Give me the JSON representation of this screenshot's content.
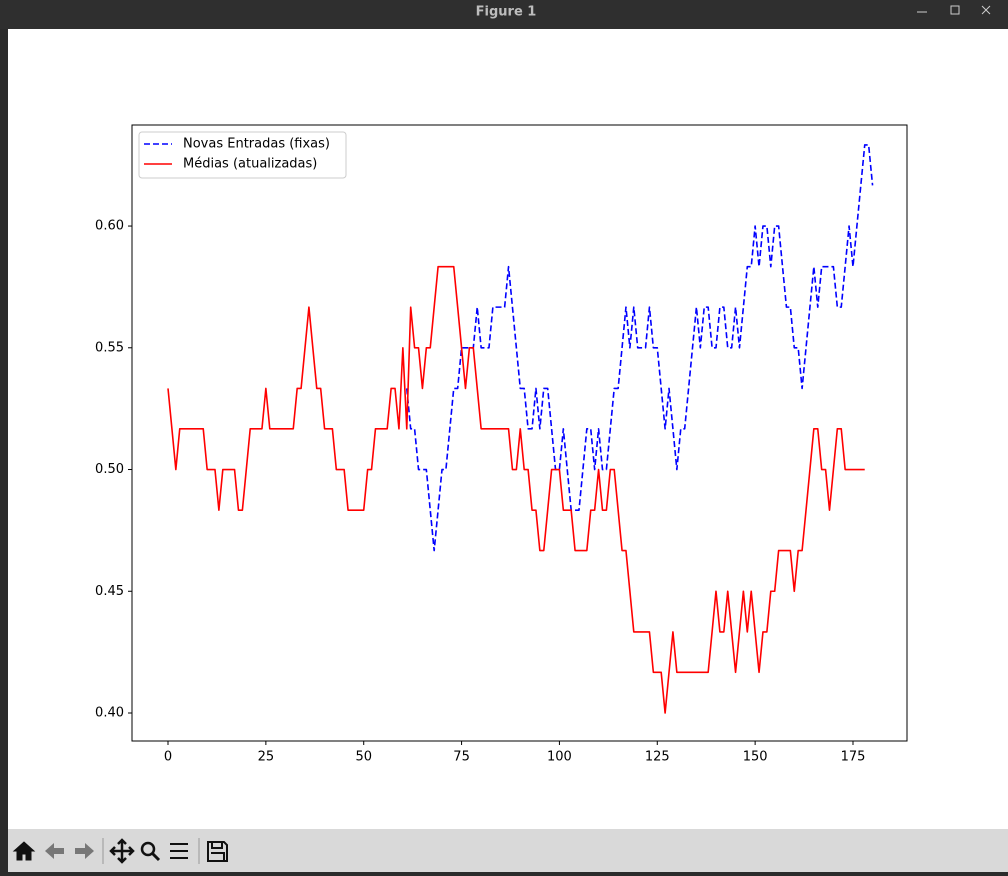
{
  "window": {
    "title": "Figure 1"
  },
  "chart_data": {
    "type": "line",
    "legend": "upper left",
    "grid": false,
    "x": [
      0,
      1,
      2,
      3,
      4,
      5,
      6,
      7,
      8,
      9,
      10,
      11,
      12,
      13,
      14,
      15,
      16,
      17,
      18,
      19,
      20,
      21,
      22,
      23,
      24,
      25,
      26,
      27,
      28,
      29,
      30,
      31,
      32,
      33,
      34,
      35,
      36,
      37,
      38,
      39,
      40,
      41,
      42,
      43,
      44,
      45,
      46,
      47,
      48,
      49,
      50,
      51,
      52,
      53,
      54,
      55,
      56,
      57,
      58,
      59,
      60,
      61,
      62,
      63,
      64,
      65,
      66,
      67,
      68,
      69,
      70,
      71,
      72,
      73,
      74,
      75,
      76,
      77,
      78,
      79,
      80,
      81,
      82,
      83,
      84,
      85,
      86,
      87,
      88,
      89,
      90,
      91,
      92,
      93,
      94,
      95,
      96,
      97,
      98,
      99,
      100,
      101,
      102,
      103,
      104,
      105,
      106,
      107,
      108,
      109,
      110,
      111,
      112,
      113,
      114,
      115,
      116,
      117,
      118,
      119,
      120,
      121,
      122,
      123,
      124,
      125,
      126,
      127,
      128,
      129,
      130,
      131,
      132,
      133,
      134,
      135,
      136,
      137,
      138,
      139,
      140,
      141,
      142,
      143,
      144,
      145,
      146,
      147,
      148,
      149,
      150,
      151,
      152,
      153,
      154,
      155,
      156,
      157,
      158,
      159,
      160,
      161,
      162,
      163,
      164,
      165,
      166,
      167,
      168,
      169,
      170,
      171,
      172,
      173,
      174,
      175,
      176,
      177,
      178,
      179,
      180
    ],
    "series": [
      {
        "name": "Novas Entradas (fixas)",
        "color": "#0000ff",
        "linestyle": "dashed",
        "values": [
          null,
          null,
          null,
          null,
          null,
          null,
          null,
          null,
          null,
          null,
          null,
          null,
          null,
          null,
          null,
          null,
          null,
          null,
          null,
          null,
          null,
          null,
          null,
          null,
          null,
          null,
          null,
          null,
          null,
          null,
          null,
          null,
          null,
          null,
          null,
          null,
          null,
          null,
          null,
          null,
          null,
          null,
          null,
          null,
          null,
          null,
          null,
          null,
          null,
          null,
          null,
          null,
          null,
          null,
          null,
          null,
          null,
          null,
          null,
          null,
          null,
          0.5333,
          0.5167,
          0.5167,
          0.5,
          0.5,
          0.5,
          0.4833,
          0.4667,
          0.4833,
          0.5,
          0.5,
          0.5167,
          0.5333,
          0.5333,
          0.55,
          0.55,
          0.55,
          0.55,
          0.5667,
          0.55,
          0.55,
          0.55,
          0.5667,
          0.5667,
          0.5667,
          0.5667,
          0.5833,
          0.5667,
          0.55,
          0.5333,
          0.5333,
          0.5167,
          0.5167,
          0.5333,
          0.5167,
          0.5333,
          0.5333,
          0.5167,
          0.5,
          0.5,
          0.5167,
          0.5,
          0.4833,
          0.4833,
          0.4833,
          0.5,
          0.5167,
          0.5167,
          0.5,
          0.5167,
          0.5,
          0.5,
          0.5167,
          0.5333,
          0.5333,
          0.55,
          0.5667,
          0.55,
          0.5667,
          0.55,
          0.55,
          0.55,
          0.5667,
          0.55,
          0.55,
          0.5333,
          0.5167,
          0.5333,
          0.5167,
          0.5,
          0.5167,
          0.5167,
          0.5333,
          0.55,
          0.5667,
          0.55,
          0.5667,
          0.5667,
          0.55,
          0.55,
          0.5667,
          0.5667,
          0.55,
          0.55,
          0.5667,
          0.55,
          0.5667,
          0.5833,
          0.5833,
          0.6,
          0.5833,
          0.6,
          0.6,
          0.5833,
          0.6,
          0.6,
          0.5833,
          0.5667,
          0.5667,
          0.55,
          0.55,
          0.5333,
          0.55,
          0.5667,
          0.5833,
          0.5667,
          0.5833,
          0.5833,
          0.5833,
          0.5833,
          0.5667,
          0.5667,
          0.5833,
          0.6,
          0.5833,
          0.6,
          0.6167,
          0.6333,
          0.6333,
          0.6167
        ]
      },
      {
        "name": "Médias (atualizadas)",
        "color": "#ff0000",
        "linestyle": "solid",
        "values": [
          0.5333,
          0.5167,
          0.5,
          0.5167,
          0.5167,
          0.5167,
          0.5167,
          0.5167,
          0.5167,
          0.5167,
          0.5,
          0.5,
          0.5,
          0.4833,
          0.5,
          0.5,
          0.5,
          0.5,
          0.4833,
          0.4833,
          0.5,
          0.5167,
          0.5167,
          0.5167,
          0.5167,
          0.5333,
          0.5167,
          0.5167,
          0.5167,
          0.5167,
          0.5167,
          0.5167,
          0.5167,
          0.5333,
          0.5333,
          0.55,
          0.5667,
          0.55,
          0.5333,
          0.5333,
          0.5167,
          0.5167,
          0.5167,
          0.5,
          0.5,
          0.5,
          0.4833,
          0.4833,
          0.4833,
          0.4833,
          0.4833,
          0.5,
          0.5,
          0.5167,
          0.5167,
          0.5167,
          0.5167,
          0.5333,
          0.5333,
          0.5167,
          0.55,
          0.5167,
          0.5667,
          0.55,
          0.55,
          0.5333,
          0.55,
          0.55,
          0.5667,
          0.5833,
          0.5833,
          0.5833,
          0.5833,
          0.5833,
          0.5667,
          0.55,
          0.5333,
          0.55,
          0.55,
          0.5333,
          0.5167,
          0.5167,
          0.5167,
          0.5167,
          0.5167,
          0.5167,
          0.5167,
          0.5167,
          0.5,
          0.5,
          0.5167,
          0.5,
          0.5,
          0.4833,
          0.4833,
          0.4667,
          0.4667,
          0.4833,
          0.5,
          0.5,
          0.5,
          0.4833,
          0.4833,
          0.4833,
          0.4667,
          0.4667,
          0.4667,
          0.4667,
          0.4833,
          0.4833,
          0.5,
          0.4833,
          0.4833,
          0.5,
          0.5,
          0.4833,
          0.4667,
          0.4667,
          0.45,
          0.4333,
          0.4333,
          0.4333,
          0.4333,
          0.4333,
          0.4167,
          0.4167,
          0.4167,
          0.4,
          0.4167,
          0.4333,
          0.4167,
          0.4167,
          0.4167,
          0.4167,
          0.4167,
          0.4167,
          0.4167,
          0.4167,
          0.4167,
          0.4333,
          0.45,
          0.4333,
          0.4333,
          0.45,
          0.4333,
          0.4167,
          0.4333,
          0.45,
          0.4333,
          0.45,
          0.4333,
          0.4167,
          0.4333,
          0.4333,
          0.45,
          0.45,
          0.4667,
          0.4667,
          0.4667,
          0.4667,
          0.45,
          0.4667,
          0.4667,
          0.4833,
          0.5,
          0.5167,
          0.5167,
          0.5,
          0.5,
          0.4833,
          0.5,
          0.5167,
          0.5167,
          0.5,
          0.5,
          0.5,
          0.5,
          0.5,
          0.5,
          null,
          null
        ]
      }
    ],
    "xlim": [
      -9.2,
      188.8
    ],
    "xticks": [
      0,
      25,
      50,
      75,
      100,
      125,
      150,
      175
    ],
    "ylim": [
      0.3885,
      0.6415
    ],
    "yticks": [
      {
        "value": 0.4,
        "label": "0.40"
      },
      {
        "value": 0.45,
        "label": "0.45"
      },
      {
        "value": 0.5,
        "label": "0.50"
      },
      {
        "value": 0.55,
        "label": "0.55"
      },
      {
        "value": 0.6,
        "label": "0.60"
      }
    ]
  }
}
